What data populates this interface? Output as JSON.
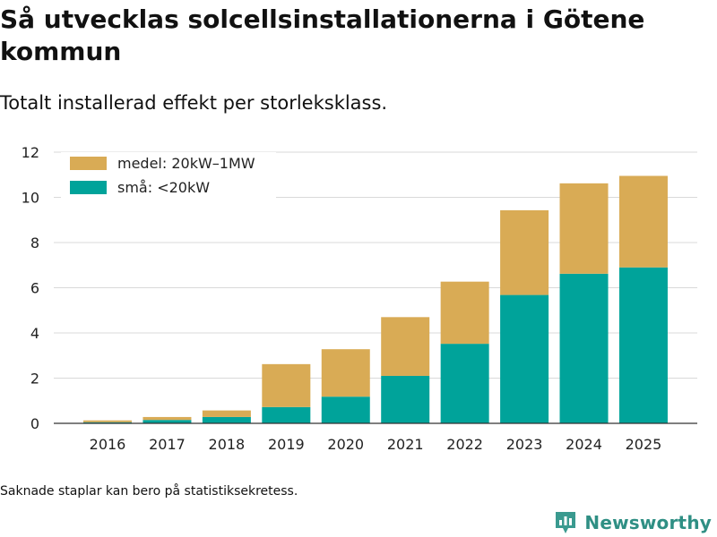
{
  "title": "Så utvecklas solcellsinstallationerna i Götene kommun",
  "subtitle": "Totalt installerad effekt per storleksklass.",
  "footnote": "Saknade staplar kan bero på statistiksekretess.",
  "brand": {
    "name": "Newsworthy",
    "icon": "newsworthy-logo-icon",
    "color": "#3a9a8f"
  },
  "chart_data": {
    "type": "bar",
    "stacked": true,
    "categories": [
      "2016",
      "2017",
      "2018",
      "2019",
      "2020",
      "2021",
      "2022",
      "2023",
      "2024",
      "2025"
    ],
    "series": [
      {
        "name": "små: <20kW",
        "color": "#00a39a",
        "values": [
          0.05,
          0.15,
          0.28,
          0.72,
          1.18,
          2.1,
          3.52,
          5.68,
          6.62,
          6.9
        ]
      },
      {
        "name": "medel: 20kW–1MW",
        "color": "#d9ab55",
        "values": [
          0.08,
          0.13,
          0.29,
          1.9,
          2.1,
          2.6,
          2.75,
          3.75,
          4.0,
          4.05
        ]
      }
    ],
    "legend_order": [
      "medel: 20kW–1MW",
      "små: <20kW"
    ],
    "legend_position": "top-left",
    "ylim": [
      0,
      12
    ],
    "yticks": [
      0,
      2,
      4,
      6,
      8,
      10,
      12
    ],
    "xlabel": "",
    "ylabel": "",
    "grid": true
  }
}
